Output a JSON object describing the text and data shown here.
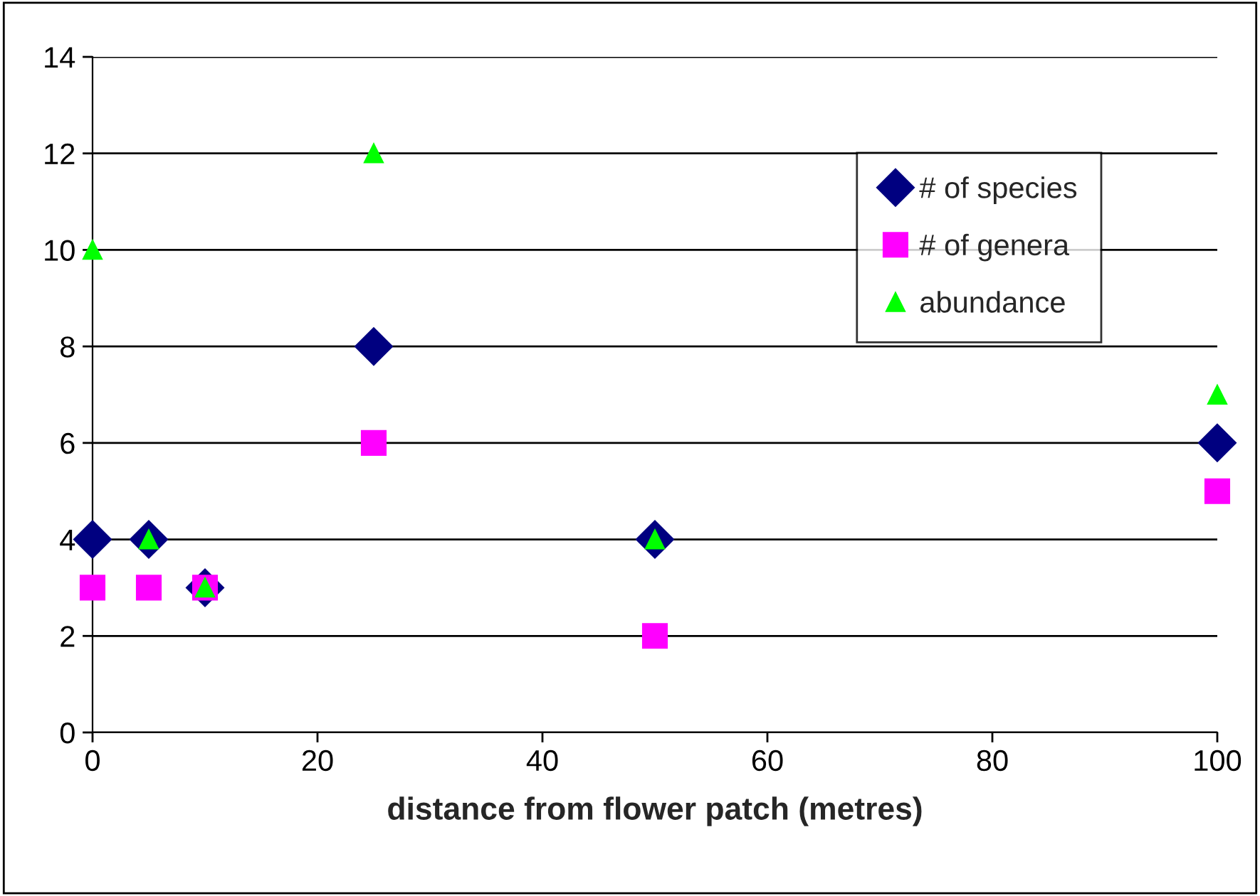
{
  "chart_data": {
    "type": "scatter",
    "xlabel": "distance from flower patch (metres)",
    "x": [
      0,
      5,
      10,
      25,
      50,
      100
    ],
    "series": [
      {
        "name": "# of species",
        "color": "#000080",
        "marker": "diamond",
        "values": [
          4,
          4,
          3,
          8,
          4,
          6
        ]
      },
      {
        "name": "# of genera",
        "color": "#ff00ff",
        "marker": "square",
        "values": [
          3,
          3,
          3,
          6,
          2,
          5
        ]
      },
      {
        "name": "abundance",
        "color": "#00ff00",
        "marker": "triangle",
        "values": [
          10,
          4,
          3,
          12,
          4,
          7
        ]
      }
    ],
    "xlim": [
      0,
      100
    ],
    "xticks": [
      0,
      20,
      40,
      60,
      80,
      100
    ],
    "ylim": [
      0,
      14
    ],
    "yticks": [
      0,
      2,
      4,
      6,
      8,
      10,
      12,
      14
    ],
    "grid": "y",
    "legend": "top right"
  }
}
